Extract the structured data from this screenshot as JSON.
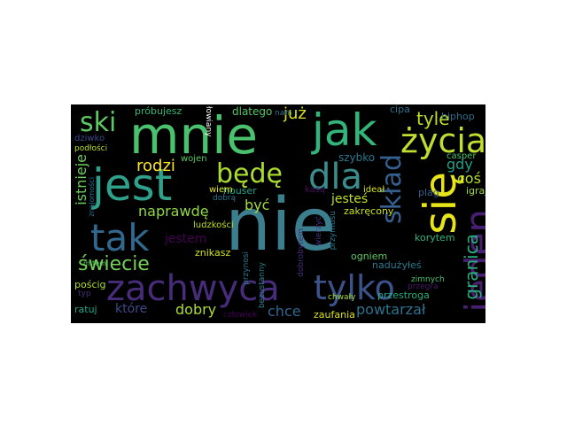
{
  "wordcloud": {
    "words": [
      {
        "text": "nie",
        "color": "#3b7f8e"
      },
      {
        "text": "mnie",
        "color": "#4ac16d"
      },
      {
        "text": "jest",
        "color": "#2fa08a"
      },
      {
        "text": "jak",
        "color": "#32b47b"
      },
      {
        "text": "zachwyca",
        "color": "#472c7a"
      },
      {
        "text": "się",
        "color": "#e7e419"
      },
      {
        "text": "życia",
        "color": "#bfde30"
      },
      {
        "text": "dla",
        "color": "#3b8c8c"
      },
      {
        "text": "tak",
        "color": "#31688e"
      },
      {
        "text": "tylko",
        "color": "#3b528b"
      },
      {
        "text": "jeden",
        "color": "#481f70"
      },
      {
        "text": "będę",
        "color": "#aadc32"
      },
      {
        "text": "skład",
        "color": "#355f8d"
      },
      {
        "text": "ski",
        "color": "#5ec962"
      },
      {
        "text": "świecie",
        "color": "#73d056"
      },
      {
        "text": "naprawdę",
        "color": "#8fd744"
      },
      {
        "text": "granica",
        "color": "#29af7f"
      },
      {
        "text": "rodzi",
        "color": "#fde725"
      },
      {
        "text": "już",
        "color": "#d8e219"
      },
      {
        "text": "tyle",
        "color": "#bddf26"
      },
      {
        "text": "gdy",
        "color": "#1fa088"
      },
      {
        "text": "coś",
        "color": "#b5de2b"
      },
      {
        "text": "być",
        "color": "#a2da37"
      },
      {
        "text": "jesteś",
        "color": "#c0df25"
      },
      {
        "text": "dobry",
        "color": "#addc30"
      },
      {
        "text": "chce",
        "color": "#31678e"
      },
      {
        "text": "które",
        "color": "#3e4989"
      },
      {
        "text": "powtarzał",
        "color": "#2c738e"
      },
      {
        "text": "istnieje",
        "color": "#6ccd5a"
      },
      {
        "text": "jestem",
        "color": "#440154"
      },
      {
        "text": "hiphop",
        "color": "#2e6d8e"
      },
      {
        "text": "igraj",
        "color": "#a0da39"
      },
      {
        "text": "szybko",
        "color": "#2a788e"
      },
      {
        "text": "dlatego",
        "color": "#58c765"
      },
      {
        "text": "próbujesz",
        "color": "#35b779"
      },
      {
        "text": "houser",
        "color": "#20a386"
      },
      {
        "text": "zakręcony",
        "color": "#cae11f"
      },
      {
        "text": "znikasz",
        "color": "#d2e21b"
      },
      {
        "text": "pościg",
        "color": "#b0dd2f"
      },
      {
        "text": "ratuj",
        "color": "#22a785"
      },
      {
        "text": "zaufania",
        "color": "#dde318"
      },
      {
        "text": "człowiek",
        "color": "#440154"
      },
      {
        "text": "nadużyłeś",
        "color": "#2a788e"
      },
      {
        "text": "przestroga",
        "color": "#26ad81"
      },
      {
        "text": "ogniem",
        "color": "#5ec962"
      },
      {
        "text": "plag",
        "color": "#34608d"
      },
      {
        "text": "korytem",
        "color": "#31b57b"
      },
      {
        "text": "casper",
        "color": "#4ac16d"
      },
      {
        "text": "cipa",
        "color": "#2c728e"
      },
      {
        "text": "ideał",
        "color": "#d5e21a"
      },
      {
        "text": "kasą",
        "color": "#471063"
      },
      {
        "text": "wiem",
        "color": "#dfe318"
      },
      {
        "text": "dobrą",
        "color": "#2c728e"
      },
      {
        "text": "wojen",
        "color": "#5cc863"
      },
      {
        "text": "ludzkości",
        "color": "#c2df23"
      },
      {
        "text": "dziwko",
        "color": "#3e4989"
      },
      {
        "text": "typ",
        "color": "#472d7b"
      },
      {
        "text": "bezustanny",
        "color": "#27808e"
      },
      {
        "text": "dobrobytem",
        "color": "#472c7a"
      },
      {
        "text": "chwały",
        "color": "#a5db36"
      },
      {
        "text": "nam",
        "color": "#2d718e"
      },
      {
        "text": "przynosi",
        "color": "#2a778e"
      },
      {
        "text": "zimnych",
        "color": "#46c06f"
      },
      {
        "text": "przegra",
        "color": "#48186a"
      },
      {
        "text": "podłości",
        "color": "#b8de29"
      },
      {
        "text": "znajomości",
        "color": "#2c728e"
      },
      {
        "text": "mitem",
        "color": "#5cc863"
      },
      {
        "text": "łowiany",
        "color": "#ffffff"
      },
      {
        "text": "przymusu",
        "color": "#2a788e"
      },
      {
        "text": "wierzyć",
        "color": "#46337e"
      }
    ]
  }
}
